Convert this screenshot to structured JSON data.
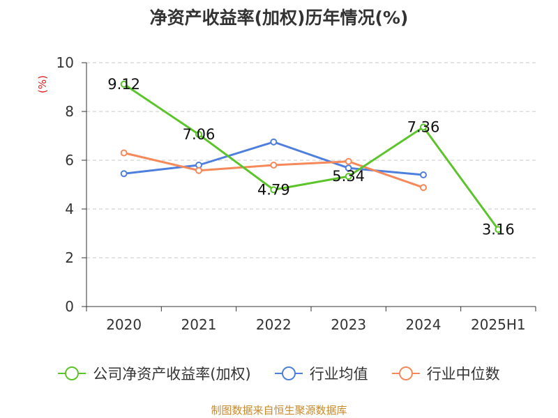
{
  "title": "净资产收益率(加权)历年情况(%)",
  "unit_label": "(%)",
  "source": "制图数据来自恒生聚源数据库",
  "chart_data": {
    "type": "line",
    "title": "净资产收益率(加权)历年情况(%)",
    "ylabel": "(%)",
    "xlabel": "",
    "categories": [
      "2020",
      "2021",
      "2022",
      "2023",
      "2024",
      "2025H1"
    ],
    "ylim": [
      0,
      10
    ],
    "yticks": [
      0,
      2,
      4,
      6,
      8,
      10
    ],
    "grid": true,
    "legend_position": "bottom",
    "series": [
      {
        "name": "公司净资产收益率(加权)",
        "color": "#5cc42a",
        "values": [
          9.12,
          7.06,
          4.79,
          5.34,
          7.36,
          3.16
        ],
        "labels": [
          "9.12",
          "7.06",
          "4.79",
          "5.34",
          "7.36",
          "3.16"
        ]
      },
      {
        "name": "行业均值",
        "color": "#4f7fdc",
        "values": [
          5.45,
          5.8,
          6.75,
          5.68,
          5.4,
          null
        ]
      },
      {
        "name": "行业中位数",
        "color": "#f5895a",
        "values": [
          6.3,
          5.58,
          5.8,
          5.95,
          4.88,
          null
        ]
      }
    ]
  }
}
